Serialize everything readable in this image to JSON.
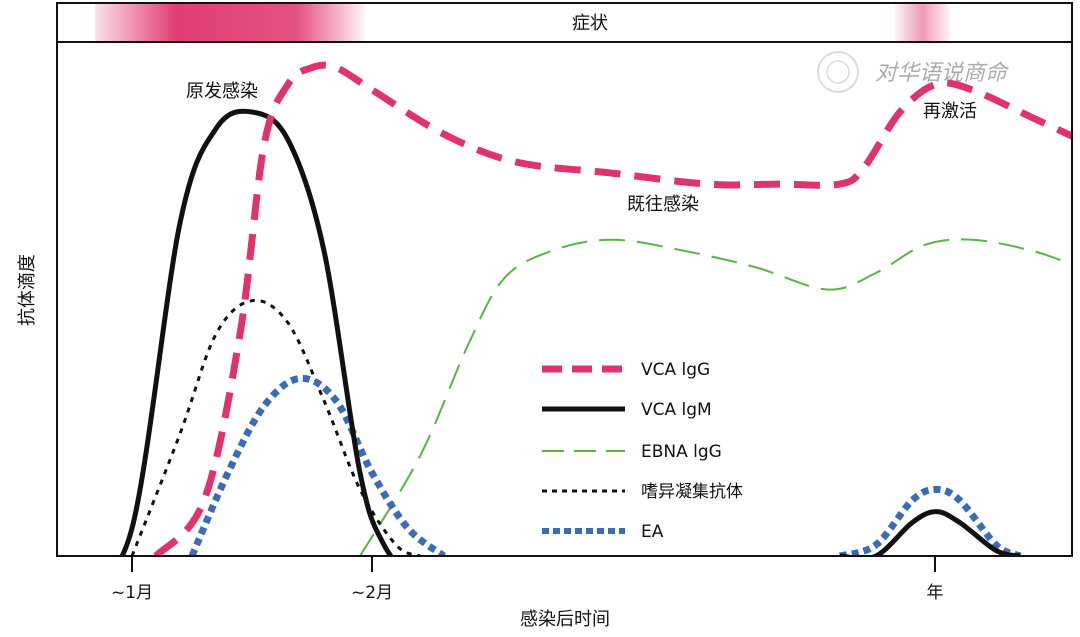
{
  "chart_data": {
    "type": "line",
    "symptom_bar_label": "症状",
    "ylabel": "抗体滴度",
    "xlabel": "感染后时间",
    "x_ticks": [
      {
        "label": "~1月",
        "x": 1
      },
      {
        "label": "~2月",
        "x": 2
      },
      {
        "label": "年",
        "x": 4.4
      }
    ],
    "xlim": [
      0.8,
      5.0
    ],
    "ylim": [
      0,
      1.0
    ],
    "symptom_bands": [
      {
        "start": 0.8,
        "end": 1.85,
        "intensity": "strong"
      },
      {
        "start": 4.2,
        "end": 4.35,
        "intensity": "weak"
      }
    ],
    "annotations": [
      {
        "text": "原发感染",
        "x": 1.25,
        "y": 0.9
      },
      {
        "text": "既往感染",
        "x": 3.0,
        "y": 0.7
      },
      {
        "text": "再激活",
        "x": 4.35,
        "y": 0.88
      }
    ],
    "watermark": "对华语说商命",
    "legend_position": "center-right",
    "series": [
      {
        "name": "VCA lgG",
        "style": "dashed-thick",
        "color": "#e0336e",
        "points": [
          [
            1.1,
            0.0
          ],
          [
            1.3,
            0.1
          ],
          [
            1.45,
            0.4
          ],
          [
            1.55,
            0.74
          ],
          [
            1.65,
            0.85
          ],
          [
            1.75,
            0.88
          ],
          [
            1.85,
            0.88
          ],
          [
            2.0,
            0.84
          ],
          [
            2.3,
            0.76
          ],
          [
            2.6,
            0.71
          ],
          [
            3.0,
            0.69
          ],
          [
            3.4,
            0.67
          ],
          [
            3.7,
            0.67
          ],
          [
            3.95,
            0.67
          ],
          [
            4.05,
            0.7
          ],
          [
            4.2,
            0.8
          ],
          [
            4.35,
            0.85
          ],
          [
            4.5,
            0.84
          ],
          [
            4.75,
            0.79
          ],
          [
            4.95,
            0.75
          ]
        ]
      },
      {
        "name": "VCA lgM",
        "style": "solid",
        "color": "#111111",
        "points": [
          [
            0.8,
            -0.06
          ],
          [
            1.0,
            0.05
          ],
          [
            1.2,
            0.6
          ],
          [
            1.35,
            0.77
          ],
          [
            1.5,
            0.8
          ],
          [
            1.65,
            0.75
          ],
          [
            1.8,
            0.55
          ],
          [
            1.95,
            0.15
          ],
          [
            2.05,
            0.02
          ],
          [
            2.2,
            -0.06
          ]
        ]
      },
      {
        "name": "VCA lgM reactivation",
        "style": "solid",
        "color": "#111111",
        "points": [
          [
            3.95,
            0.0
          ],
          [
            4.1,
            0.0
          ],
          [
            4.25,
            0.06
          ],
          [
            4.35,
            0.08
          ],
          [
            4.45,
            0.06
          ],
          [
            4.6,
            0.01
          ],
          [
            4.7,
            0.0
          ]
        ]
      },
      {
        "name": "EBNA lgG",
        "style": "dashed-thin",
        "color": "#5bb346",
        "points": [
          [
            1.95,
            0.0
          ],
          [
            2.2,
            0.18
          ],
          [
            2.4,
            0.38
          ],
          [
            2.55,
            0.5
          ],
          [
            2.75,
            0.55
          ],
          [
            3.0,
            0.57
          ],
          [
            3.3,
            0.55
          ],
          [
            3.6,
            0.52
          ],
          [
            3.9,
            0.48
          ],
          [
            4.1,
            0.51
          ],
          [
            4.3,
            0.56
          ],
          [
            4.5,
            0.57
          ],
          [
            4.75,
            0.55
          ],
          [
            4.95,
            0.52
          ]
        ]
      },
      {
        "name": "嗜异凝集抗体",
        "style": "dotted",
        "color": "#111111",
        "points": [
          [
            1.0,
            0.0
          ],
          [
            1.2,
            0.22
          ],
          [
            1.35,
            0.4
          ],
          [
            1.5,
            0.46
          ],
          [
            1.65,
            0.42
          ],
          [
            1.8,
            0.28
          ],
          [
            1.95,
            0.12
          ],
          [
            2.1,
            0.02
          ],
          [
            2.2,
            0.0
          ]
        ]
      },
      {
        "name": "EA",
        "style": "dotted-thick",
        "color": "#3a6bb5",
        "points": [
          [
            1.25,
            0.0
          ],
          [
            1.4,
            0.15
          ],
          [
            1.55,
            0.27
          ],
          [
            1.7,
            0.32
          ],
          [
            1.85,
            0.28
          ],
          [
            2.0,
            0.15
          ],
          [
            2.15,
            0.05
          ],
          [
            2.3,
            0.0
          ]
        ]
      },
      {
        "name": "EA reactivation",
        "style": "dotted-thick",
        "color": "#3a6bb5",
        "points": [
          [
            3.95,
            0.0
          ],
          [
            4.1,
            0.02
          ],
          [
            4.25,
            0.1
          ],
          [
            4.35,
            0.12
          ],
          [
            4.45,
            0.1
          ],
          [
            4.6,
            0.02
          ],
          [
            4.7,
            0.0
          ]
        ]
      }
    ],
    "legend": [
      {
        "label": "VCA lgG",
        "series": "VCA lgG"
      },
      {
        "label": "VCA lgM",
        "series": "VCA lgM"
      },
      {
        "label": "EBNA lgG",
        "series": "EBNA lgG"
      },
      {
        "label": "嗜异凝集抗体",
        "series": "嗜异凝集抗体"
      },
      {
        "label": "EA",
        "series": "EA"
      }
    ]
  }
}
